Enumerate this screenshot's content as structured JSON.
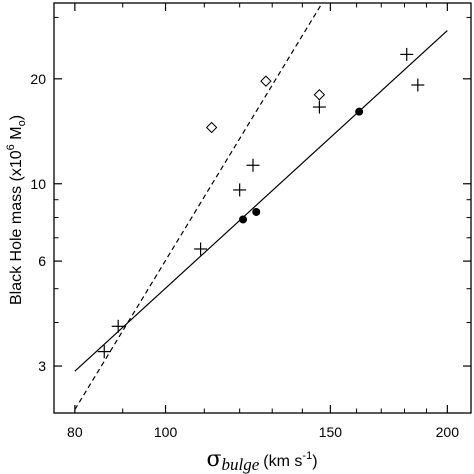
{
  "chart_data": {
    "type": "scatter",
    "x_scale": "log",
    "y_scale": "log",
    "xlim": [
      76,
      212
    ],
    "ylim": [
      2.2,
      33
    ],
    "xticks_major": [
      80,
      100,
      150,
      200
    ],
    "xticks_minor": [
      90,
      110,
      120,
      130,
      140,
      160,
      170,
      180,
      190
    ],
    "yticks_major": [
      3,
      6,
      10,
      20
    ],
    "yticks_minor": [
      4,
      5,
      7,
      8,
      9,
      30
    ],
    "xlabel": {
      "symbol": "σ",
      "subscript": "bulge",
      "units": "(km s",
      "exponent": "-1",
      "close": ")"
    },
    "ylabel": {
      "text": "Black Hole mass (x10",
      "exponent": "6",
      "units": " M",
      "subscript": "o",
      "close": ")"
    },
    "grid": false,
    "legend": "none",
    "series": [
      {
        "marker": "plus",
        "x": [
          86,
          89,
          109,
          120,
          124,
          146,
          181,
          186
        ],
        "y": [
          3.3,
          3.9,
          6.5,
          9.6,
          11.3,
          16.6,
          23.5,
          19.2
        ]
      },
      {
        "marker": "diamond",
        "x": [
          112,
          128,
          146
        ],
        "y": [
          14.5,
          19.7,
          18.0
        ]
      },
      {
        "marker": "filled-circle",
        "x": [
          121,
          125,
          161
        ],
        "y": [
          7.9,
          8.3,
          16.1
        ]
      }
    ],
    "fit_lines": [
      {
        "style": "solid",
        "x": [
          80,
          200
        ],
        "y": [
          2.9,
          27.5
        ]
      },
      {
        "style": "dashed",
        "x": [
          80,
          147
        ],
        "y": [
          2.25,
          33
        ]
      }
    ]
  }
}
